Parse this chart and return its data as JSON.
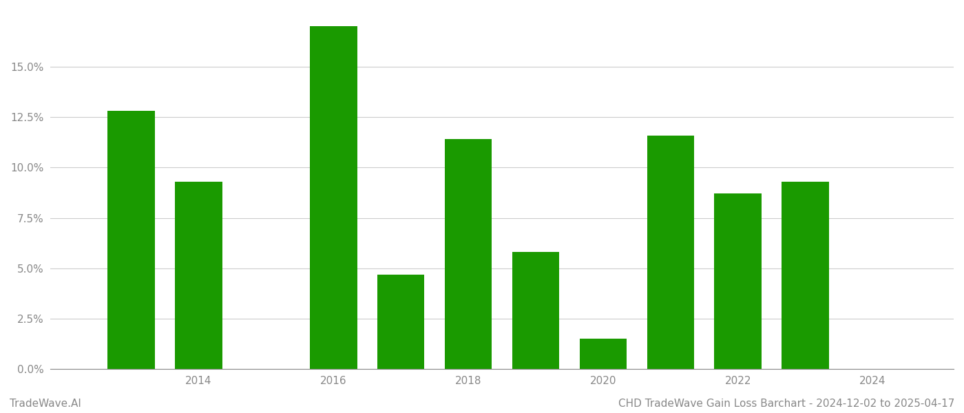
{
  "years": [
    2013,
    2014,
    2016,
    2017,
    2018,
    2019,
    2020,
    2021,
    2022,
    2023
  ],
  "values": [
    0.128,
    0.093,
    0.17,
    0.047,
    0.114,
    0.058,
    0.015,
    0.116,
    0.087,
    0.093
  ],
  "bar_color": "#1a9a00",
  "bar_width": 0.7,
  "xlim": [
    2011.8,
    2025.2
  ],
  "ylim": [
    0.0,
    0.178
  ],
  "yticks": [
    0.0,
    0.025,
    0.05,
    0.075,
    0.1,
    0.125,
    0.15
  ],
  "ytick_labels": [
    "0.0%",
    "2.5%",
    "5.0%",
    "7.5%",
    "10.0%",
    "12.5%",
    "15.0%"
  ],
  "xticks": [
    2014,
    2016,
    2018,
    2020,
    2022,
    2024
  ],
  "xtick_labels": [
    "2014",
    "2016",
    "2018",
    "2020",
    "2022",
    "2024"
  ],
  "footer_left": "TradeWave.AI",
  "footer_right": "CHD TradeWave Gain Loss Barchart - 2024-12-02 to 2025-04-17",
  "background_color": "#ffffff",
  "grid_color": "#cccccc",
  "tick_color": "#888888",
  "footer_fontsize": 11,
  "axis_label_fontsize": 11
}
